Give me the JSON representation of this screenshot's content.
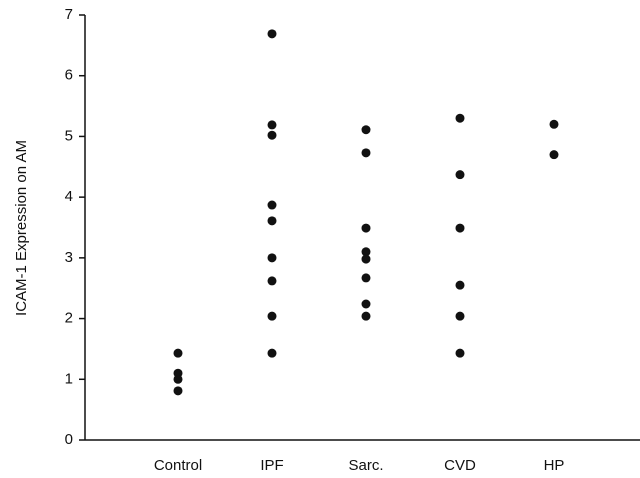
{
  "chart_data": {
    "type": "strip",
    "y_label": "ICAM-1 Expression on AM",
    "categories": [
      "Control",
      "IPF",
      "Sarc.",
      "CVD",
      "HP"
    ],
    "values": [
      [
        1.43,
        1.1,
        1.0,
        0.81
      ],
      [
        6.69,
        5.19,
        5.02,
        3.87,
        3.61,
        3.0,
        2.62,
        2.04,
        1.43
      ],
      [
        5.11,
        4.73,
        3.49,
        3.1,
        2.98,
        2.67,
        2.24,
        2.04
      ],
      [
        5.3,
        4.37,
        3.49,
        2.55,
        2.04,
        1.43
      ],
      [
        5.2,
        4.7
      ]
    ],
    "color": "#111111",
    "ylim": [
      0,
      7
    ],
    "yticks": [
      0,
      1,
      2,
      3,
      4,
      5,
      6,
      7
    ]
  }
}
